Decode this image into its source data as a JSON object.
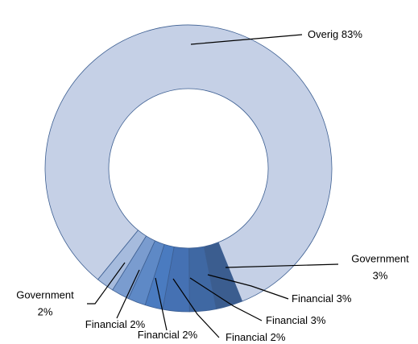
{
  "chart_data": {
    "type": "donut",
    "categories": [
      "Government",
      "Financial",
      "Financial",
      "Financial",
      "Financial",
      "Financial",
      "Government",
      "Overig"
    ],
    "values": [
      3,
      3,
      3,
      2,
      2,
      2,
      2,
      83
    ],
    "value_labels": [
      "3%",
      "3%",
      "3%",
      "2%",
      "2%",
      "2%",
      "2%",
      "83%"
    ],
    "colors": [
      "#3b5d8f",
      "#3f68a3",
      "#4571b3",
      "#4a7bc0",
      "#5e89c6",
      "#7a9ccf",
      "#a6bbdd",
      "#c5d0e6"
    ]
  }
}
